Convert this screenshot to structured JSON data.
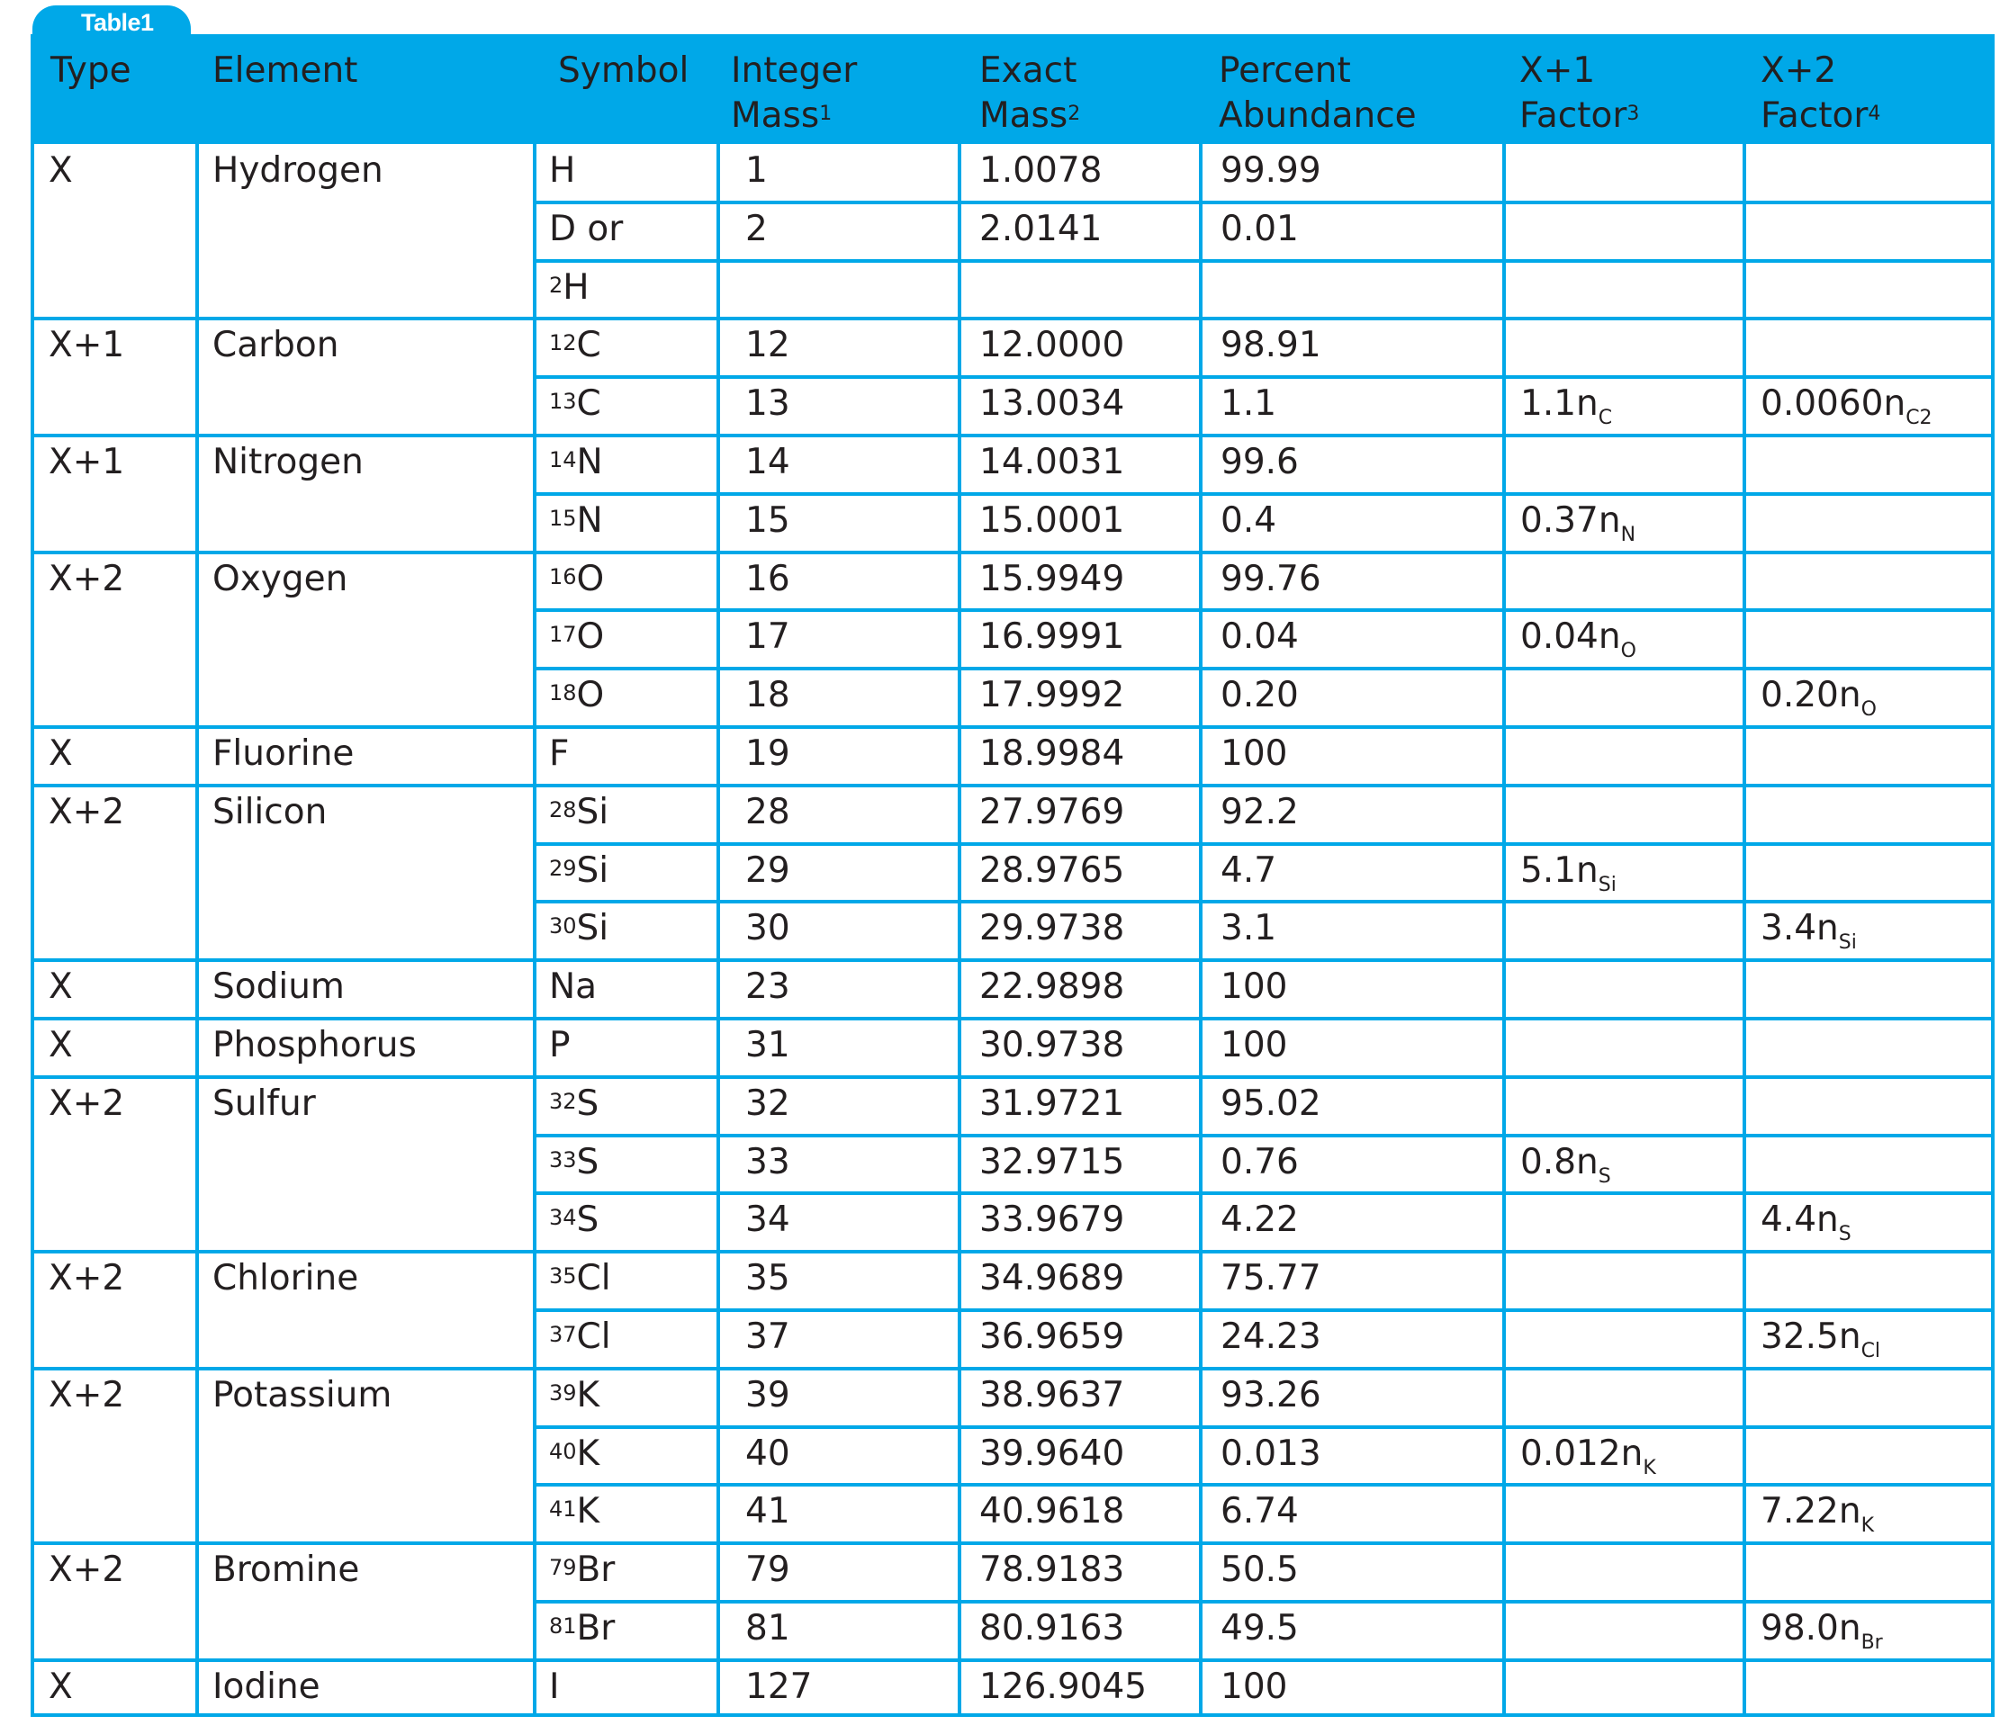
{
  "tab_label": "Table1",
  "headers": [
    {
      "line1": "Type",
      "line2": "",
      "sup": ""
    },
    {
      "line1": "Element",
      "line2": "",
      "sup": ""
    },
    {
      "line1": "Symbol",
      "line2": "",
      "sup": ""
    },
    {
      "line1": "Integer",
      "line2": "Mass",
      "sup": "1"
    },
    {
      "line1": "Exact",
      "line2": "Mass",
      "sup": "2"
    },
    {
      "line1": "Percent",
      "line2": "Abundance",
      "sup": ""
    },
    {
      "line1": "X+1",
      "line2": "Factor",
      "sup": "3"
    },
    {
      "line1": "X+2",
      "line2": "Factor",
      "sup": "4"
    }
  ],
  "groups": [
    {
      "type": "X",
      "element": "Hydrogen",
      "rows": [
        {
          "iso": "",
          "sym": "H",
          "int": "1",
          "exact": "1.0078",
          "pct": "99.99",
          "f1": "",
          "f1sub": "",
          "f2": "",
          "f2sub": ""
        },
        {
          "iso": "",
          "sym": "D or",
          "int": "2",
          "exact": "2.0141",
          "pct": "0.01",
          "f1": "",
          "f1sub": "",
          "f2": "",
          "f2sub": ""
        },
        {
          "iso": "2",
          "sym": "H",
          "int": "",
          "exact": "",
          "pct": "",
          "f1": "",
          "f1sub": "",
          "f2": "",
          "f2sub": ""
        }
      ]
    },
    {
      "type": "X+1",
      "element": "Carbon",
      "rows": [
        {
          "iso": "12",
          "sym": "C",
          "int": "12",
          "exact": "12.0000",
          "pct": "98.91",
          "f1": "",
          "f1sub": "",
          "f2": "",
          "f2sub": ""
        },
        {
          "iso": "13",
          "sym": "C",
          "int": "13",
          "exact": "13.0034",
          "pct": "1.1",
          "f1": "1.1n",
          "f1sub": "C",
          "f2": "0.0060n",
          "f2sub": "C2"
        }
      ]
    },
    {
      "type": "X+1",
      "element": "Nitrogen",
      "rows": [
        {
          "iso": "14",
          "sym": "N",
          "int": "14",
          "exact": "14.0031",
          "pct": "99.6",
          "f1": "",
          "f1sub": "",
          "f2": "",
          "f2sub": ""
        },
        {
          "iso": "15",
          "sym": "N",
          "int": "15",
          "exact": "15.0001",
          "pct": "0.4",
          "f1": "0.37n",
          "f1sub": "N",
          "f2": "",
          "f2sub": ""
        }
      ]
    },
    {
      "type": "X+2",
      "element": "Oxygen",
      "rows": [
        {
          "iso": "16",
          "sym": "O",
          "int": "16",
          "exact": "15.9949",
          "pct": "99.76",
          "f1": "",
          "f1sub": "",
          "f2": "",
          "f2sub": ""
        },
        {
          "iso": "17",
          "sym": "O",
          "int": "17",
          "exact": "16.9991",
          "pct": "0.04",
          "f1": "0.04n",
          "f1sub": "O",
          "f2": "",
          "f2sub": ""
        },
        {
          "iso": "18",
          "sym": "O",
          "int": "18",
          "exact": "17.9992",
          "pct": "0.20",
          "f1": "",
          "f1sub": "",
          "f2": "0.20n",
          "f2sub": "O"
        }
      ]
    },
    {
      "type": "X",
      "element": "Fluorine",
      "rows": [
        {
          "iso": "",
          "sym": "F",
          "int": "19",
          "exact": "18.9984",
          "pct": "100",
          "f1": "",
          "f1sub": "",
          "f2": "",
          "f2sub": ""
        }
      ]
    },
    {
      "type": "X+2",
      "element": "Silicon",
      "rows": [
        {
          "iso": "28",
          "sym": "Si",
          "int": "28",
          "exact": "27.9769",
          "pct": "92.2",
          "f1": "",
          "f1sub": "",
          "f2": "",
          "f2sub": ""
        },
        {
          "iso": "29",
          "sym": "Si",
          "int": "29",
          "exact": "28.9765",
          "pct": "4.7",
          "f1": "5.1n",
          "f1sub": "Si",
          "f2": "",
          "f2sub": ""
        },
        {
          "iso": "30",
          "sym": "Si",
          "int": "30",
          "exact": "29.9738",
          "pct": "3.1",
          "f1": "",
          "f1sub": "",
          "f2": "3.4n",
          "f2sub": "Si"
        }
      ]
    },
    {
      "type": "X",
      "element": "Sodium",
      "rows": [
        {
          "iso": "",
          "sym": "Na",
          "int": "23",
          "exact": "22.9898",
          "pct": "100",
          "f1": "",
          "f1sub": "",
          "f2": "",
          "f2sub": ""
        }
      ]
    },
    {
      "type": "X",
      "element": "Phosphorus",
      "rows": [
        {
          "iso": "",
          "sym": "P",
          "int": "31",
          "exact": "30.9738",
          "pct": "100",
          "f1": "",
          "f1sub": "",
          "f2": "",
          "f2sub": ""
        }
      ]
    },
    {
      "type": "X+2",
      "element": "Sulfur",
      "rows": [
        {
          "iso": "32",
          "sym": "S",
          "int": "32",
          "exact": "31.9721",
          "pct": "95.02",
          "f1": "",
          "f1sub": "",
          "f2": "",
          "f2sub": ""
        },
        {
          "iso": "33",
          "sym": "S",
          "int": "33",
          "exact": "32.9715",
          "pct": "0.76",
          "f1": "0.8n",
          "f1sub": "S",
          "f2": "",
          "f2sub": ""
        },
        {
          "iso": "34",
          "sym": "S",
          "int": "34",
          "exact": "33.9679",
          "pct": "4.22",
          "f1": "",
          "f1sub": "",
          "f2": "4.4n",
          "f2sub": "S"
        }
      ]
    },
    {
      "type": "X+2",
      "element": "Chlorine",
      "rows": [
        {
          "iso": "35",
          "sym": "Cl",
          "int": "35",
          "exact": "34.9689",
          "pct": "75.77",
          "f1": "",
          "f1sub": "",
          "f2": "",
          "f2sub": ""
        },
        {
          "iso": "37",
          "sym": "Cl",
          "int": "37",
          "exact": "36.9659",
          "pct": "24.23",
          "f1": "",
          "f1sub": "",
          "f2": "32.5n",
          "f2sub": "Cl"
        }
      ]
    },
    {
      "type": "X+2",
      "element": "Potassium",
      "rows": [
        {
          "iso": "39",
          "sym": "K",
          "int": "39",
          "exact": "38.9637",
          "pct": "93.26",
          "f1": "",
          "f1sub": "",
          "f2": "",
          "f2sub": ""
        },
        {
          "iso": "40",
          "sym": "K",
          "int": "40",
          "exact": "39.9640",
          "pct": "0.013",
          "f1": "0.012n",
          "f1sub": "K",
          "f2": "",
          "f2sub": ""
        },
        {
          "iso": "41",
          "sym": "K",
          "int": "41",
          "exact": "40.9618",
          "pct": "6.74",
          "f1": "",
          "f1sub": "",
          "f2": "7.22n",
          "f2sub": "K"
        }
      ]
    },
    {
      "type": "X+2",
      "element": "Bromine",
      "rows": [
        {
          "iso": "79",
          "sym": "Br",
          "int": "79",
          "exact": "78.9183",
          "pct": "50.5",
          "f1": "",
          "f1sub": "",
          "f2": "",
          "f2sub": ""
        },
        {
          "iso": "81",
          "sym": "Br",
          "int": "81",
          "exact": "80.9163",
          "pct": "49.5",
          "f1": "",
          "f1sub": "",
          "f2": "98.0n",
          "f2sub": "Br"
        }
      ]
    },
    {
      "type": "X",
      "element": "Iodine",
      "rows": [
        {
          "iso": "",
          "sym": "I",
          "int": "127",
          "exact": "126.9045",
          "pct": "100",
          "f1": "",
          "f1sub": "",
          "f2": "",
          "f2sub": ""
        }
      ]
    }
  ]
}
